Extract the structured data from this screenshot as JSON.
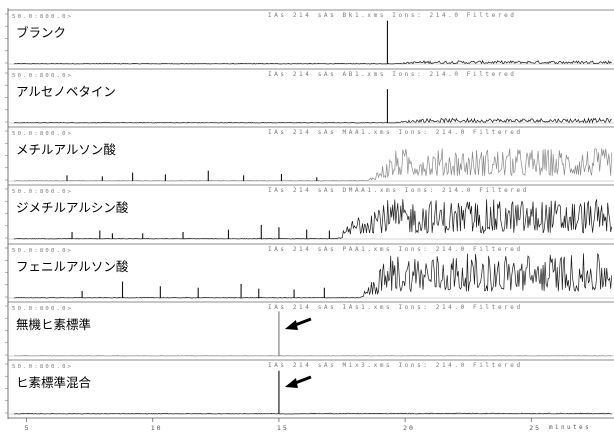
{
  "chart_data": {
    "type": "line",
    "xlabel": "minutes",
    "xlim": [
      4.5,
      28.2
    ],
    "xticks": [
      {
        "value": 5,
        "label": "5"
      },
      {
        "value": 10,
        "label": "10"
      },
      {
        "value": 15,
        "label": "15"
      },
      {
        "value": 20,
        "label": "20"
      },
      {
        "value": 25,
        "label": "25"
      }
    ],
    "panels": [
      {
        "label": "ブランク",
        "header": "IAs 214 sAs Bk1.xms Ions: 214.0 Filtered",
        "scale": "50.0:800.0>",
        "peaks": [
          {
            "x": 19.3,
            "y": 0.92
          }
        ],
        "noise": {
          "start": 19.4,
          "level": 0.07
        },
        "stroke": "#1a1a1a",
        "arrow": false
      },
      {
        "label": "アルセノベタイン",
        "header": "IAs 214 sAs AB1.xms Ions: 214.0 Filtered",
        "scale": "50.0:800.0>",
        "peaks": [
          {
            "x": 19.3,
            "y": 0.72
          }
        ],
        "noise": {
          "start": 19.4,
          "level": 0.1
        },
        "stroke": "#1a1a1a",
        "arrow": false
      },
      {
        "label": "メチルアルソン酸",
        "header": "IAs 214 sAs MAA1.xms Ions: 214.0 Filtered",
        "scale": "50.0:800.0>",
        "peaks": [
          {
            "x": 6.6,
            "y": 0.12
          },
          {
            "x": 8.0,
            "y": 0.1
          },
          {
            "x": 9.2,
            "y": 0.18
          },
          {
            "x": 10.5,
            "y": 0.14
          },
          {
            "x": 12.2,
            "y": 0.22
          },
          {
            "x": 13.6,
            "y": 0.12
          },
          {
            "x": 15.1,
            "y": 0.15
          },
          {
            "x": 16.5,
            "y": 0.08
          }
        ],
        "noise": {
          "start": 18.5,
          "level": 0.7
        },
        "stroke": "#8a8a8a",
        "arrow": false
      },
      {
        "label": "ジメチルアルシン酸",
        "header": "IAs 214 sAs DMAA1.xms Ions: 214.0 Filtered",
        "scale": "50.0:800.0>",
        "peaks": [
          {
            "x": 6.8,
            "y": 0.15
          },
          {
            "x": 7.9,
            "y": 0.18
          },
          {
            "x": 8.4,
            "y": 0.12
          },
          {
            "x": 9.6,
            "y": 0.12
          },
          {
            "x": 11.2,
            "y": 0.15
          },
          {
            "x": 13.0,
            "y": 0.2
          },
          {
            "x": 14.3,
            "y": 0.3
          },
          {
            "x": 15.0,
            "y": 0.25
          },
          {
            "x": 16.1,
            "y": 0.2
          },
          {
            "x": 17.0,
            "y": 0.18
          }
        ],
        "noise": {
          "start": 17.3,
          "level": 0.85
        },
        "stroke": "#1a1a1a",
        "arrow": false
      },
      {
        "label": "フェニルアルソン酸",
        "header": "IAs 214 sAs PAA1.xms Ions: 214.0 Filtered",
        "scale": "50.0:800.0>",
        "peaks": [
          {
            "x": 7.2,
            "y": 0.15
          },
          {
            "x": 8.8,
            "y": 0.35
          },
          {
            "x": 10.3,
            "y": 0.25
          },
          {
            "x": 11.8,
            "y": 0.22
          },
          {
            "x": 13.5,
            "y": 0.3
          },
          {
            "x": 14.2,
            "y": 0.2
          },
          {
            "x": 15.6,
            "y": 0.18
          },
          {
            "x": 16.8,
            "y": 0.22
          }
        ],
        "noise": {
          "start": 18.2,
          "level": 0.95
        },
        "stroke": "#1a1a1a",
        "arrow": false
      },
      {
        "label": "無機ヒ素標準",
        "header": "IAs 214 sAs IAs1.xms Ions: 214.0 Filtered",
        "scale": "50.0:800.0>",
        "peaks": [
          {
            "x": 15.0,
            "y": 0.95
          }
        ],
        "noise": {
          "start": 15.2,
          "level": 0.0
        },
        "stroke": "#9a9a9a",
        "arrow": true
      },
      {
        "label": "ヒ素標準混合",
        "header": "IAs 214 sAs Mix3.xms Ions: 214.0 Filtered",
        "scale": "50.0:800.0>",
        "peaks": [
          {
            "x": 15.0,
            "y": 0.92
          }
        ],
        "noise": {
          "start": 15.2,
          "level": 0.02
        },
        "stroke": "#1a1a1a",
        "arrow": true
      }
    ]
  }
}
